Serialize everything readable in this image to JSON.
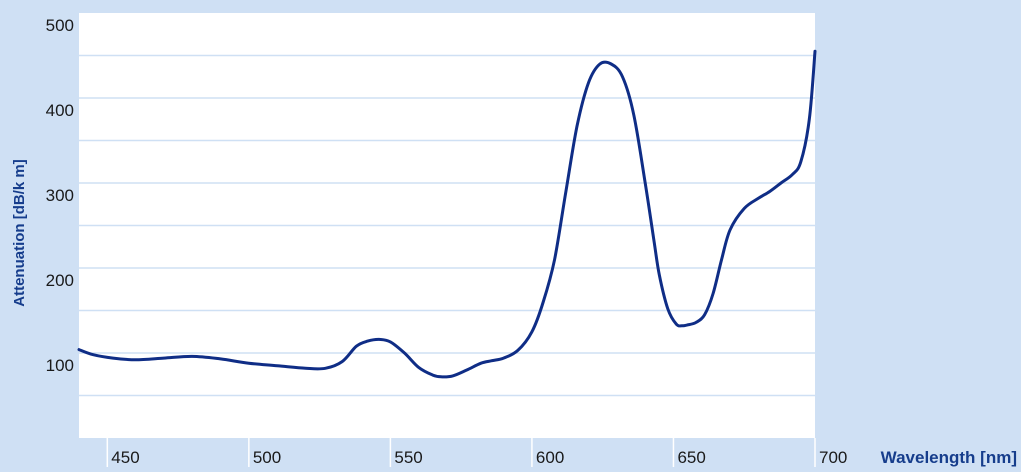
{
  "chart_data": {
    "type": "line",
    "title": "",
    "xlabel": "Wavelength [nm]",
    "ylabel": "Attenuation  [dB/k m]",
    "xlim": [
      440,
      700
    ],
    "ylim": [
      0,
      500
    ],
    "x_ticks": [
      450,
      500,
      550,
      600,
      650,
      700
    ],
    "y_ticks": [
      100,
      200,
      300,
      400,
      500
    ],
    "y_grid": [
      50,
      100,
      150,
      200,
      250,
      300,
      350,
      400,
      450
    ],
    "grid": "horizontal",
    "colors": {
      "background": "#cfe0f4",
      "plot_area": "#ffffff",
      "gridline": "#cfe0f4",
      "line": "#0f2d86",
      "axis_label": "#163d8c",
      "tick_text": "#1a1a1a"
    },
    "series": [
      {
        "x": [
          440,
          445,
          452,
          460,
          470,
          480,
          490,
          500,
          510,
          520,
          527,
          533,
          538,
          542,
          546,
          550,
          555,
          560,
          565,
          568,
          572,
          577,
          582,
          586,
          590,
          595,
          600,
          604,
          608,
          612,
          616,
          620,
          624,
          628,
          632,
          636,
          640,
          643,
          645,
          648,
          651,
          653,
          655,
          658,
          661,
          664,
          667,
          670,
          675,
          680,
          684,
          688,
          692,
          695,
          698,
          700
        ],
        "y": [
          104,
          98,
          94,
          92,
          94,
          96,
          93,
          88,
          85,
          82,
          82,
          90,
          108,
          114,
          116,
          113,
          100,
          83,
          74,
          72,
          73,
          80,
          88,
          91,
          94,
          103,
          125,
          160,
          210,
          290,
          368,
          418,
          440,
          440,
          425,
          380,
          300,
          235,
          192,
          152,
          134,
          132,
          133,
          136,
          145,
          170,
          210,
          245,
          270,
          282,
          290,
          300,
          310,
          325,
          375,
          455
        ]
      }
    ]
  }
}
